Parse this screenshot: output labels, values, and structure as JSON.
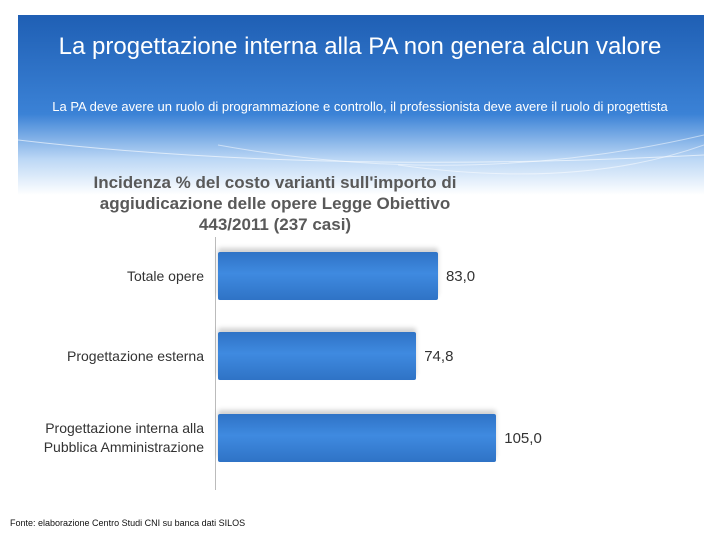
{
  "header": {
    "title": "La progettazione interna alla PA non genera alcun valore",
    "subtitle": "La PA deve avere un ruolo di programmazione e controllo, il professionista deve avere il ruolo di progettista"
  },
  "chart_data": {
    "type": "bar",
    "orientation": "horizontal",
    "title": "Incidenza % del costo varianti sull'importo di aggiudicazione delle opere Legge Obiettivo 443/2011 (237 casi)",
    "categories": [
      "Totale opere",
      "Progettazione esterna",
      "Progettazione interna alla Pubblica Amministrazione"
    ],
    "values": [
      83.0,
      74.8,
      105.0
    ],
    "value_labels": [
      "83,0",
      "74,8",
      "105,0"
    ],
    "color": "#2f73c6"
  },
  "footer": {
    "source": "Fonte: elaborazione Centro Studi CNI su banca dati SILOS"
  }
}
